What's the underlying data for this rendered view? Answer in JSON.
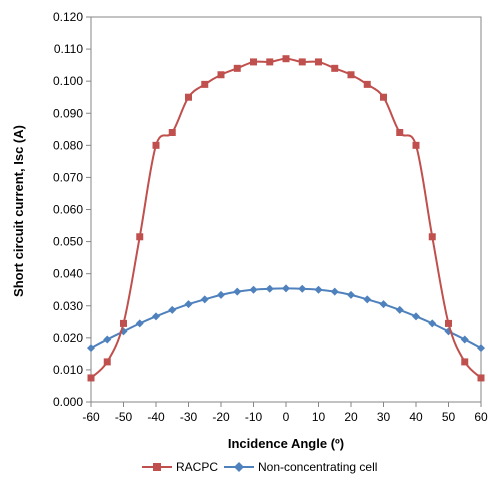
{
  "chart_data": {
    "type": "line",
    "title": "",
    "xlabel": "Incidence Angle (º)",
    "ylabel": "Short circuit current, Isc (A)",
    "xlim": [
      -60,
      60
    ],
    "ylim": [
      0,
      0.12
    ],
    "x_ticks": [
      "-60",
      "-50",
      "-40",
      "-30",
      "-20",
      "-10",
      "0",
      "10",
      "20",
      "30",
      "40",
      "50",
      "60"
    ],
    "y_ticks": [
      "0.000",
      "0.010",
      "0.020",
      "0.030",
      "0.040",
      "0.050",
      "0.060",
      "0.070",
      "0.080",
      "0.090",
      "0.100",
      "0.110",
      "0.120"
    ],
    "grid": false,
    "legend_position": "bottom",
    "series": [
      {
        "name": "RACPC",
        "color": "#c0504d",
        "marker": "square",
        "x": [
          -60,
          -55,
          -50,
          -45,
          -40,
          -35,
          -30,
          -25,
          -20,
          -15,
          -10,
          -5,
          0,
          5,
          10,
          15,
          20,
          25,
          30,
          35,
          40,
          45,
          50,
          55,
          60
        ],
        "values": [
          0.0075,
          0.0125,
          0.0245,
          0.0515,
          0.08,
          0.084,
          0.095,
          0.099,
          0.102,
          0.104,
          0.106,
          0.106,
          0.107,
          0.106,
          0.106,
          0.104,
          0.102,
          0.099,
          0.095,
          0.084,
          0.08,
          0.0515,
          0.0245,
          0.0125,
          0.0075
        ]
      },
      {
        "name": "Non-concentrating cell",
        "color": "#4f81bd",
        "marker": "diamond",
        "x": [
          -60,
          -55,
          -50,
          -45,
          -40,
          -35,
          -30,
          -25,
          -20,
          -15,
          -10,
          -5,
          0,
          5,
          10,
          15,
          20,
          25,
          30,
          35,
          40,
          45,
          50,
          55,
          60
        ],
        "values": [
          0.0168,
          0.0195,
          0.022,
          0.0245,
          0.0267,
          0.0287,
          0.0305,
          0.032,
          0.0334,
          0.0344,
          0.035,
          0.0353,
          0.0354,
          0.0353,
          0.035,
          0.0344,
          0.0334,
          0.032,
          0.0305,
          0.0287,
          0.0267,
          0.0245,
          0.022,
          0.0195,
          0.0168
        ]
      }
    ]
  }
}
